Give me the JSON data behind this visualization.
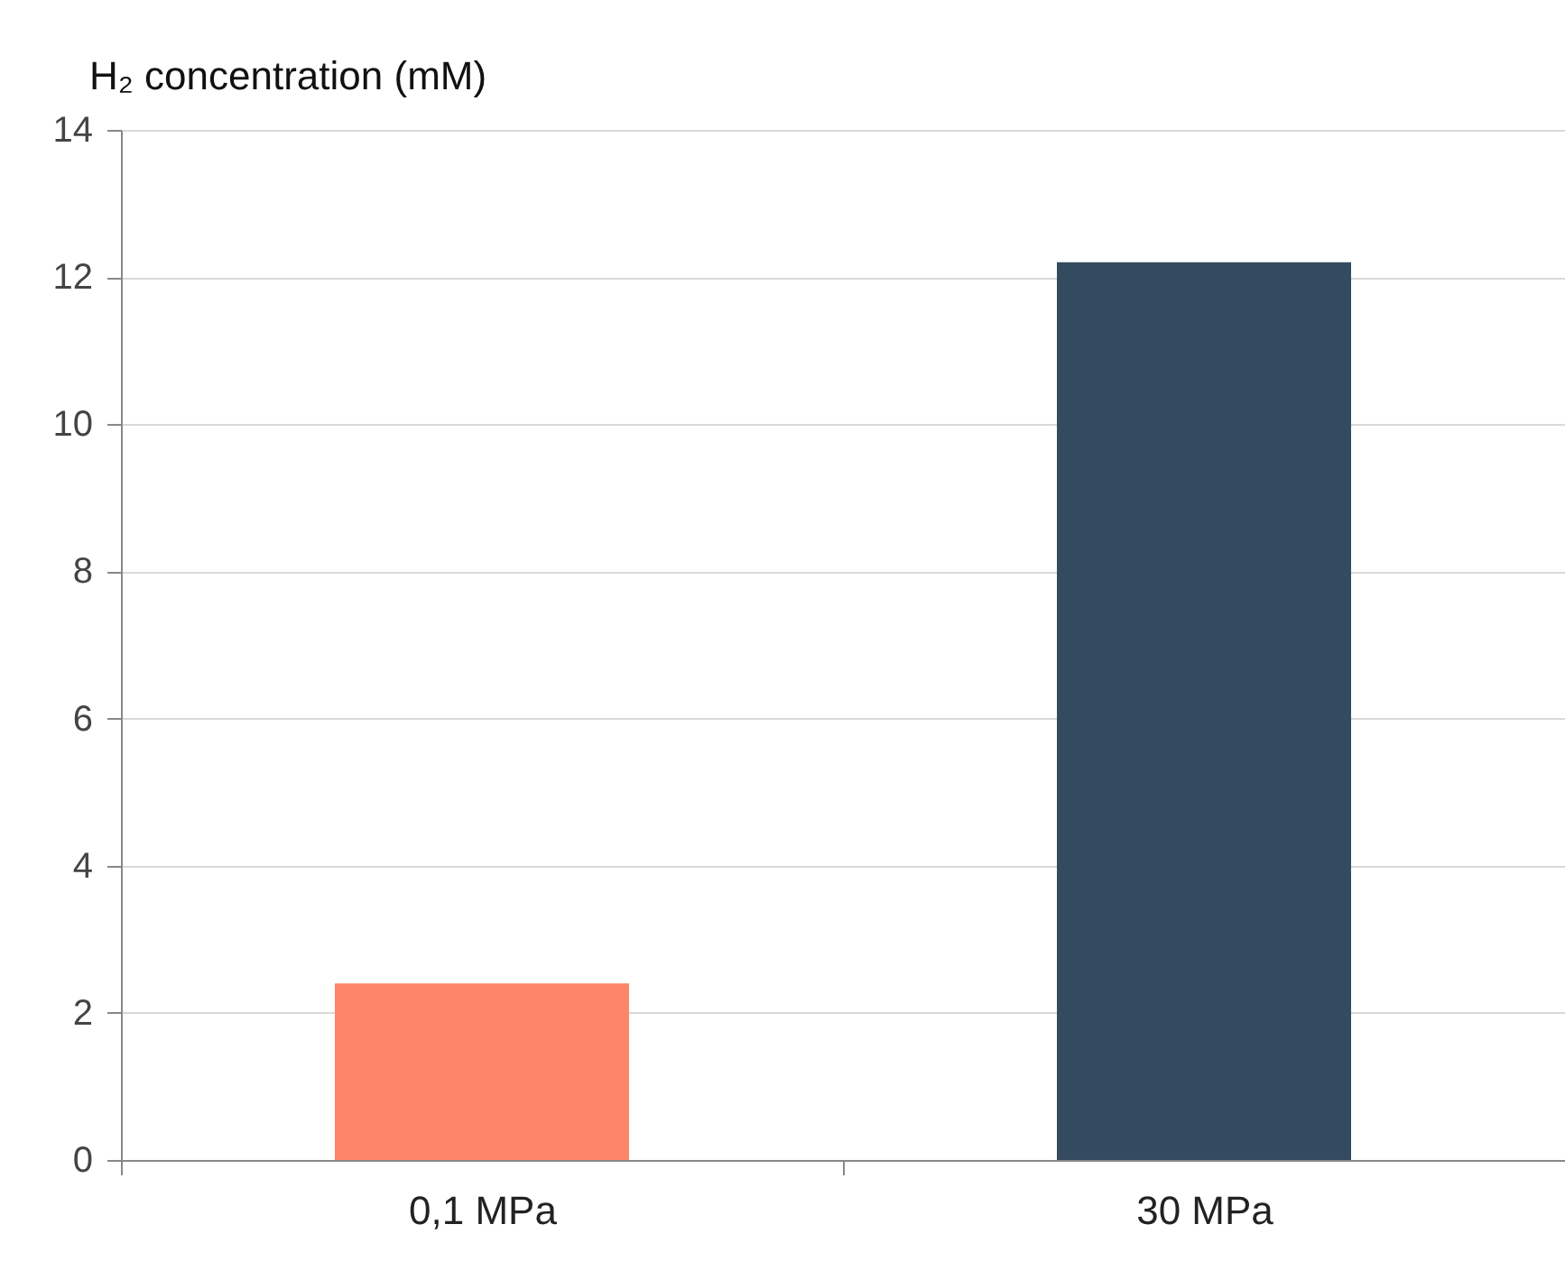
{
  "chart_data": {
    "type": "bar",
    "ylabel": "H₂ concentration (mM)",
    "categories": [
      "0,1 MPa",
      "30 MPa"
    ],
    "values": [
      2.4,
      12.2
    ],
    "colors": [
      "#fe8569",
      "#344a5e"
    ],
    "ylim": [
      0,
      14
    ],
    "yticks": [
      0,
      2,
      4,
      6,
      8,
      10,
      12,
      14
    ],
    "grid": "y"
  }
}
